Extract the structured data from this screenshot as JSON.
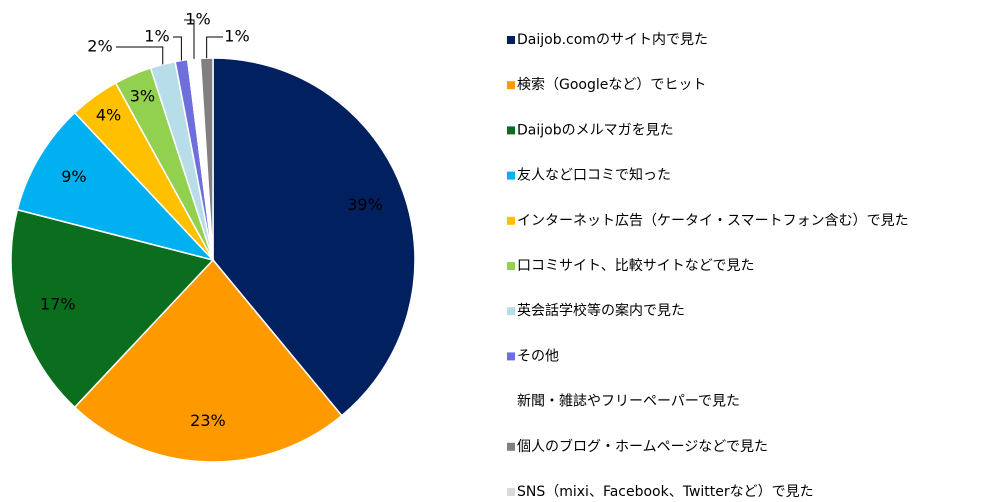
{
  "chart_data": {
    "type": "pie",
    "categories": [
      "Daijob.comのサイト内で見た",
      "検索（Googleなど）でヒット",
      "Daijobのメルマガを見た",
      "友人など口コミで知った",
      "インターネット広告（ケータイ・スマートフォン含む）で見た",
      "口コミサイト、比較サイトなどで見た",
      "英会話学校等の案内で見た",
      "その他",
      "新聞・雑誌やフリーペーパーで見た",
      "個人のブログ・ホームページなどで見た",
      "SNS（mixi、Facebook、Twitterなど）で見た"
    ],
    "values": [
      39,
      23,
      17,
      9,
      4,
      3,
      2,
      1,
      1,
      1,
      0
    ],
    "value_labels": [
      "39%",
      "23%",
      "17%",
      "9%",
      "4%",
      "3%",
      "2%",
      "1%",
      "1%",
      "1%",
      null
    ],
    "colors": [
      "#002060",
      "#ff9900",
      "#0a6e1e",
      "#00b0f0",
      "#ffc000",
      "#92d050",
      "#b7dee8",
      "#6f6fdb",
      "#ffffff",
      "#808080",
      "#d9d9d9"
    ],
    "legend": "right"
  }
}
